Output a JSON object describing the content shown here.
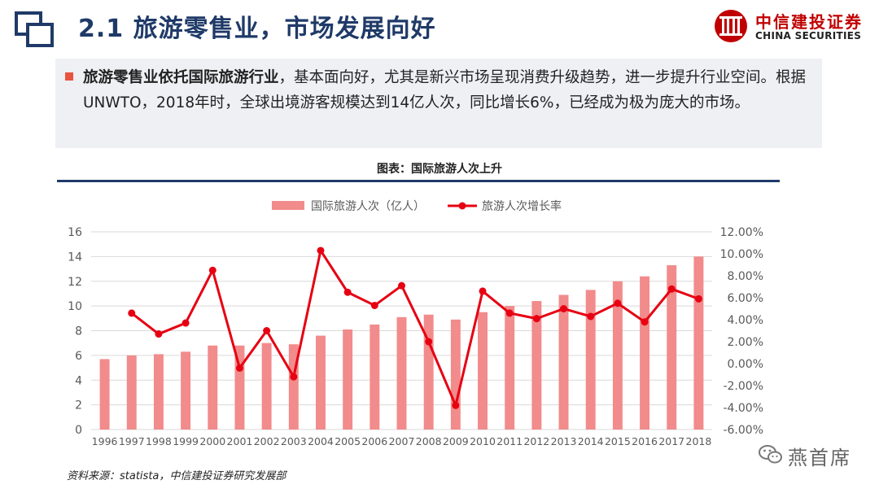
{
  "header": {
    "title": "2.1 旅游零售业，市场发展向好",
    "brand_cn": "中信建投证券",
    "brand_en": "CHINA SECURITIES",
    "section_icon": "window-icon",
    "brand_icon": "citic-logo"
  },
  "summary": {
    "bold_lead": "旅游零售业依托国际旅游行业",
    "text": "，基本面向好，尤其是新兴市场呈现消费升级趋势，进一步提升行业空间。根据UNWTO，2018年时，全球出境游客规模达到14亿人次，同比增长6%，已经成为极为庞大的市场。"
  },
  "chart_caption": "图表：国际旅游人次上升",
  "chart_data": {
    "type": "bar",
    "categories": [
      "1996",
      "1997",
      "1998",
      "1999",
      "2000",
      "2001",
      "2002",
      "2003",
      "2004",
      "2005",
      "2006",
      "2007",
      "2008",
      "2009",
      "2010",
      "2011",
      "2012",
      "2013",
      "2014",
      "2015",
      "2016",
      "2017",
      "2018"
    ],
    "series": [
      {
        "name": "国际旅游人次（亿人）",
        "type": "bar",
        "axis": "left",
        "color": "#f28b8b",
        "values": [
          5.7,
          6.0,
          6.1,
          6.3,
          6.8,
          6.8,
          7.0,
          6.9,
          7.6,
          8.1,
          8.5,
          9.1,
          9.3,
          8.9,
          9.5,
          10.0,
          10.4,
          10.9,
          11.3,
          12.0,
          12.4,
          13.3,
          14.0
        ]
      },
      {
        "name": "旅游人次增长率",
        "type": "line",
        "axis": "right",
        "color": "#e60012",
        "values": [
          null,
          4.6,
          2.7,
          3.7,
          8.5,
          -0.4,
          3.0,
          -1.2,
          10.3,
          6.5,
          5.3,
          7.1,
          2.0,
          -3.8,
          6.6,
          4.6,
          4.1,
          5.0,
          4.3,
          5.5,
          3.8,
          6.8,
          5.9
        ]
      }
    ],
    "left_axis": {
      "min": 0,
      "max": 16,
      "step": 2,
      "ticks": [
        "0",
        "2",
        "4",
        "6",
        "8",
        "10",
        "12",
        "14",
        "16"
      ]
    },
    "right_axis": {
      "min": -6,
      "max": 12,
      "step": 2,
      "ticks": [
        "-6.00%",
        "-4.00%",
        "-2.00%",
        "0.00%",
        "2.00%",
        "4.00%",
        "6.00%",
        "8.00%",
        "10.00%",
        "12.00%"
      ]
    },
    "grid": true,
    "legend_position": "top-center"
  },
  "source": "资料来源：statista，中信建投证券研究发展部",
  "watermark": {
    "text": "燕首席",
    "icon": "wechat-icon"
  }
}
